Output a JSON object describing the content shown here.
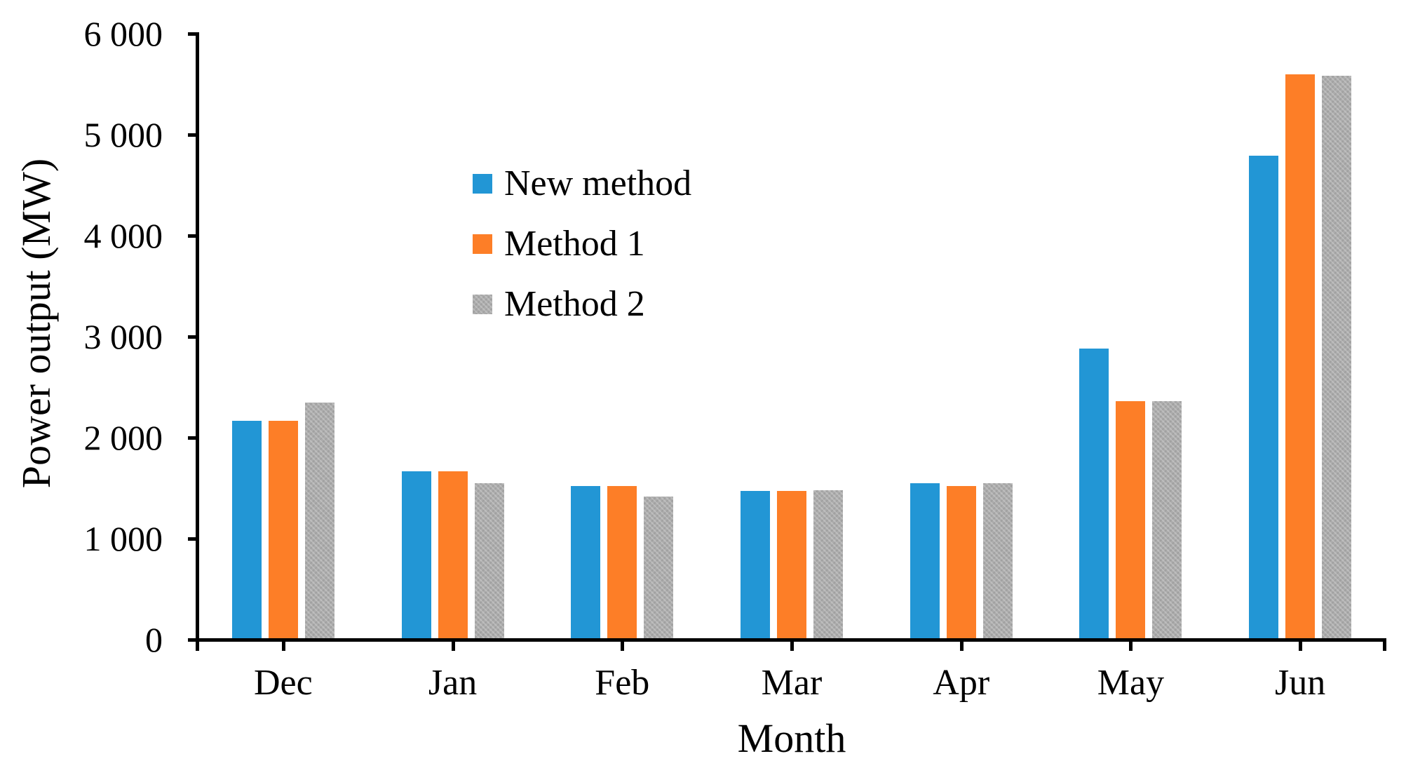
{
  "chart_data": {
    "type": "bar",
    "title": "",
    "xlabel": "Month",
    "ylabel": "Power output (MW)",
    "categories": [
      "Dec",
      "Jan",
      "Feb",
      "Mar",
      "Apr",
      "May",
      "Jun"
    ],
    "series": [
      {
        "name": "New method",
        "color": "#2296d5",
        "textured": false,
        "values": [
          2170,
          1670,
          1520,
          1470,
          1550,
          2880,
          4790
        ]
      },
      {
        "name": "Method 1",
        "color": "#fd7e27",
        "textured": false,
        "values": [
          2170,
          1670,
          1520,
          1470,
          1520,
          2360,
          5600
        ]
      },
      {
        "name": "Method 2",
        "color": "#acacac",
        "textured": true,
        "values": [
          2350,
          1550,
          1420,
          1480,
          1550,
          2360,
          5580
        ]
      }
    ],
    "ylim": [
      0,
      6000
    ],
    "yticks": [
      {
        "value": 0,
        "label": "0"
      },
      {
        "value": 1000,
        "label": "1 000"
      },
      {
        "value": 2000,
        "label": "2 000"
      },
      {
        "value": 3000,
        "label": "3 000"
      },
      {
        "value": 4000,
        "label": "4 000"
      },
      {
        "value": 5000,
        "label": "5 000"
      },
      {
        "value": 6000,
        "label": "6 000"
      }
    ],
    "grid": false,
    "legend_position": "upper-left-inside",
    "axis_color": "#000000",
    "background_color": "#ffffff"
  }
}
